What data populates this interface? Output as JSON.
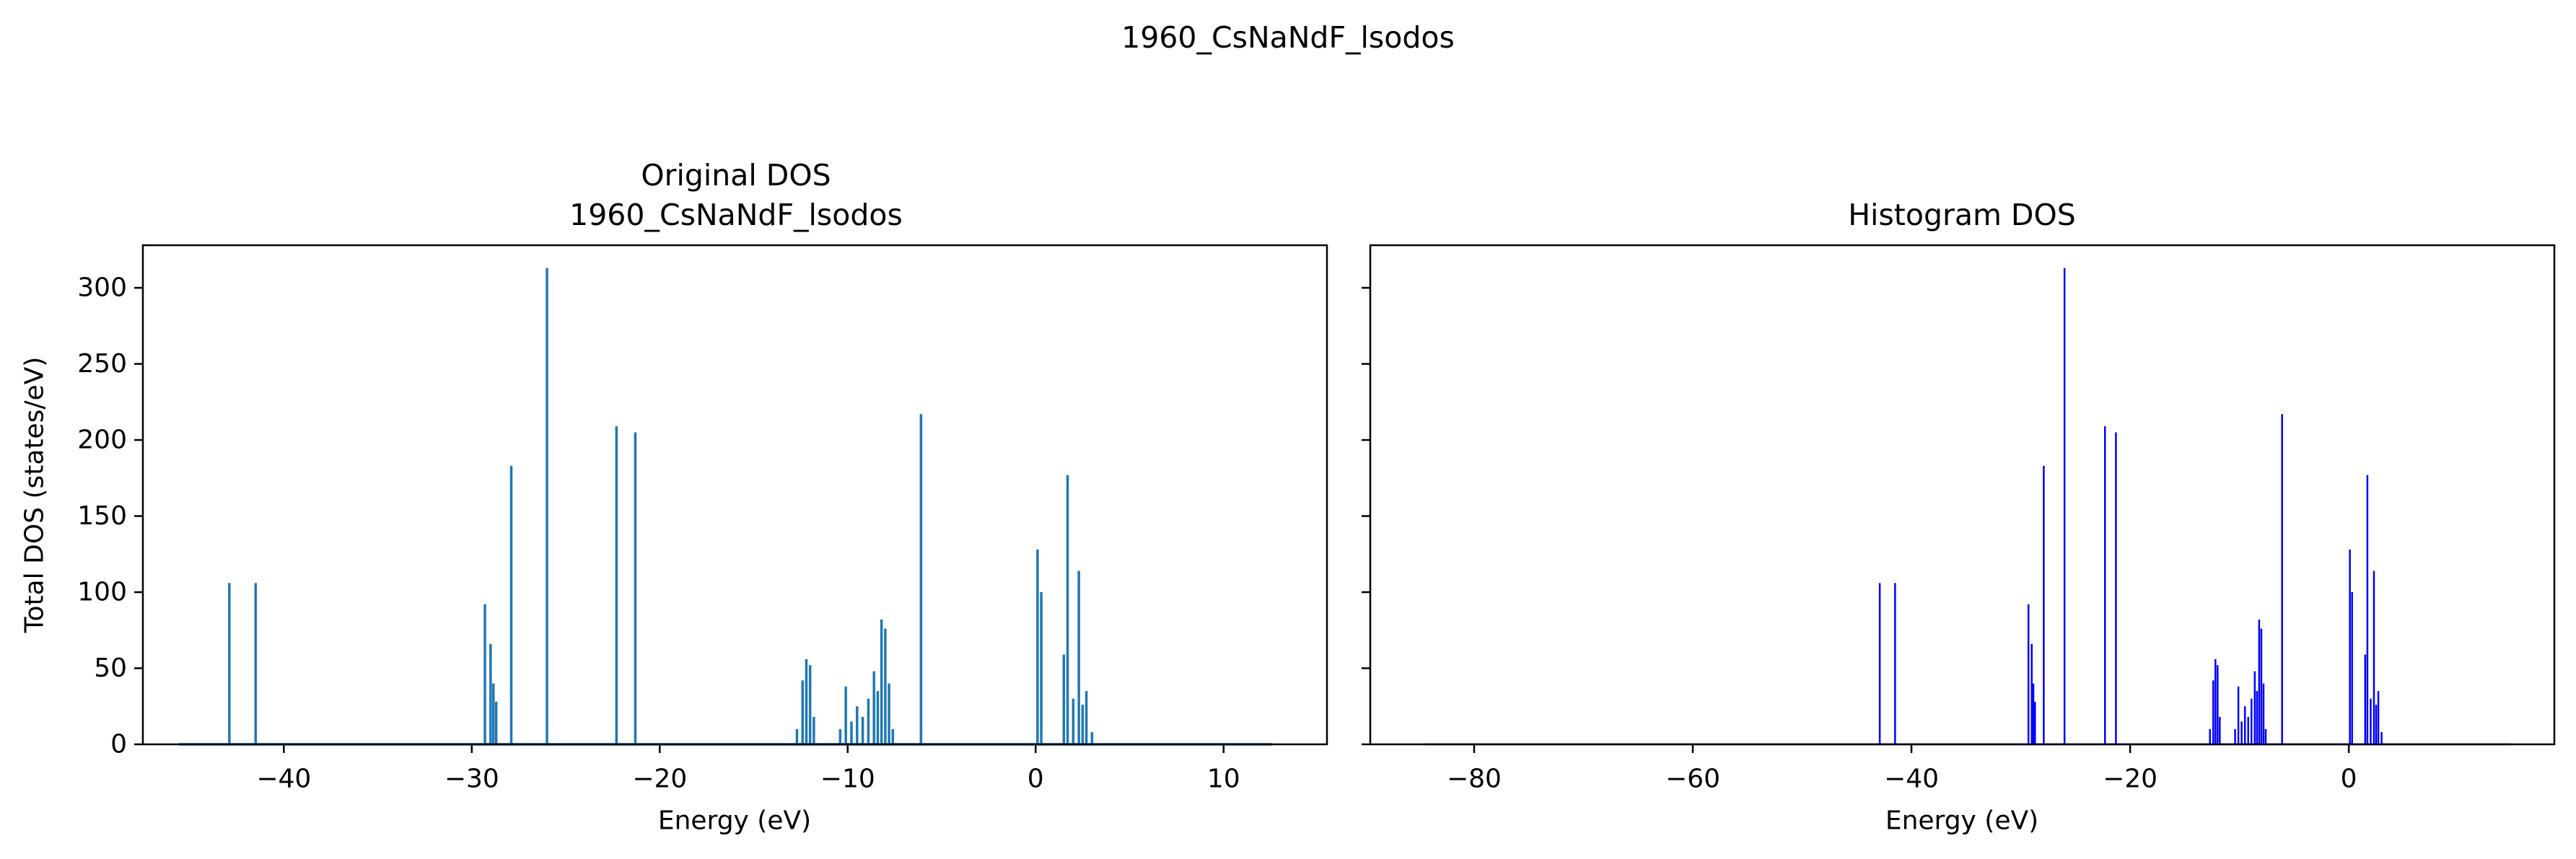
{
  "figure": {
    "suptitle": "1960_CsNaNdF_lsodos"
  },
  "chart_data": [
    {
      "type": "line",
      "title_lines": [
        "Original DOS",
        "1960_CsNaNdF_lsodos"
      ],
      "xlabel": "Energy (eV)",
      "ylabel": "Total DOS (states/eV)",
      "xlim": [
        -47.5,
        15.5
      ],
      "ylim": [
        0,
        328
      ],
      "xticks": [
        -40,
        -30,
        -20,
        -10,
        0,
        10
      ],
      "yticks": [
        0,
        50,
        100,
        150,
        200,
        250,
        300
      ],
      "grid": false,
      "color": "#1f77b4",
      "x_range": [
        -45.6,
        12.6
      ],
      "peaks": [
        {
          "x": -42.9,
          "y": 106
        },
        {
          "x": -41.5,
          "y": 106
        },
        {
          "x": -29.3,
          "y": 92
        },
        {
          "x": -29.0,
          "y": 66
        },
        {
          "x": -28.85,
          "y": 40
        },
        {
          "x": -28.7,
          "y": 28
        },
        {
          "x": -27.9,
          "y": 183
        },
        {
          "x": -26.0,
          "y": 313
        },
        {
          "x": -22.3,
          "y": 209
        },
        {
          "x": -21.3,
          "y": 205
        },
        {
          "x": -12.7,
          "y": 10
        },
        {
          "x": -12.4,
          "y": 42
        },
        {
          "x": -12.2,
          "y": 56
        },
        {
          "x": -12.0,
          "y": 52
        },
        {
          "x": -11.8,
          "y": 18
        },
        {
          "x": -10.4,
          "y": 10
        },
        {
          "x": -10.1,
          "y": 38
        },
        {
          "x": -9.8,
          "y": 15
        },
        {
          "x": -9.5,
          "y": 25
        },
        {
          "x": -9.2,
          "y": 18
        },
        {
          "x": -8.9,
          "y": 30
        },
        {
          "x": -8.6,
          "y": 48
        },
        {
          "x": -8.4,
          "y": 35
        },
        {
          "x": -8.2,
          "y": 82
        },
        {
          "x": -8.0,
          "y": 76
        },
        {
          "x": -7.8,
          "y": 40
        },
        {
          "x": -7.6,
          "y": 10
        },
        {
          "x": -6.1,
          "y": 217
        },
        {
          "x": 0.1,
          "y": 128
        },
        {
          "x": 0.3,
          "y": 100
        },
        {
          "x": 1.5,
          "y": 59
        },
        {
          "x": 1.7,
          "y": 177
        },
        {
          "x": 2.0,
          "y": 30
        },
        {
          "x": 2.3,
          "y": 114
        },
        {
          "x": 2.5,
          "y": 26
        },
        {
          "x": 2.7,
          "y": 35
        },
        {
          "x": 3.0,
          "y": 8
        }
      ]
    },
    {
      "type": "bar",
      "title_lines": [
        "Histogram DOS"
      ],
      "xlabel": "Energy (eV)",
      "ylabel": "",
      "xlim": [
        -89.5,
        18.8
      ],
      "ylim": [
        0,
        328
      ],
      "xticks": [
        -80,
        -60,
        -40,
        -20,
        0
      ],
      "yticks": [
        0,
        50,
        100,
        150,
        200,
        250,
        300
      ],
      "grid": false,
      "color": "#0000ff",
      "x_range": [
        -84.5,
        14.8
      ],
      "peaks": [
        {
          "x": -42.9,
          "y": 106
        },
        {
          "x": -41.5,
          "y": 106
        },
        {
          "x": -29.3,
          "y": 92
        },
        {
          "x": -29.0,
          "y": 66
        },
        {
          "x": -28.85,
          "y": 40
        },
        {
          "x": -28.7,
          "y": 28
        },
        {
          "x": -27.9,
          "y": 183
        },
        {
          "x": -26.0,
          "y": 313
        },
        {
          "x": -22.3,
          "y": 209
        },
        {
          "x": -21.3,
          "y": 205
        },
        {
          "x": -12.7,
          "y": 10
        },
        {
          "x": -12.4,
          "y": 42
        },
        {
          "x": -12.2,
          "y": 56
        },
        {
          "x": -12.0,
          "y": 52
        },
        {
          "x": -11.8,
          "y": 18
        },
        {
          "x": -10.4,
          "y": 10
        },
        {
          "x": -10.1,
          "y": 38
        },
        {
          "x": -9.8,
          "y": 15
        },
        {
          "x": -9.5,
          "y": 25
        },
        {
          "x": -9.2,
          "y": 18
        },
        {
          "x": -8.9,
          "y": 30
        },
        {
          "x": -8.6,
          "y": 48
        },
        {
          "x": -8.4,
          "y": 35
        },
        {
          "x": -8.2,
          "y": 82
        },
        {
          "x": -8.0,
          "y": 76
        },
        {
          "x": -7.8,
          "y": 40
        },
        {
          "x": -7.6,
          "y": 10
        },
        {
          "x": -6.1,
          "y": 217
        },
        {
          "x": 0.1,
          "y": 128
        },
        {
          "x": 0.3,
          "y": 100
        },
        {
          "x": 1.5,
          "y": 59
        },
        {
          "x": 1.7,
          "y": 177
        },
        {
          "x": 2.0,
          "y": 30
        },
        {
          "x": 2.3,
          "y": 114
        },
        {
          "x": 2.5,
          "y": 26
        },
        {
          "x": 2.7,
          "y": 35
        },
        {
          "x": 3.0,
          "y": 8
        }
      ]
    }
  ]
}
